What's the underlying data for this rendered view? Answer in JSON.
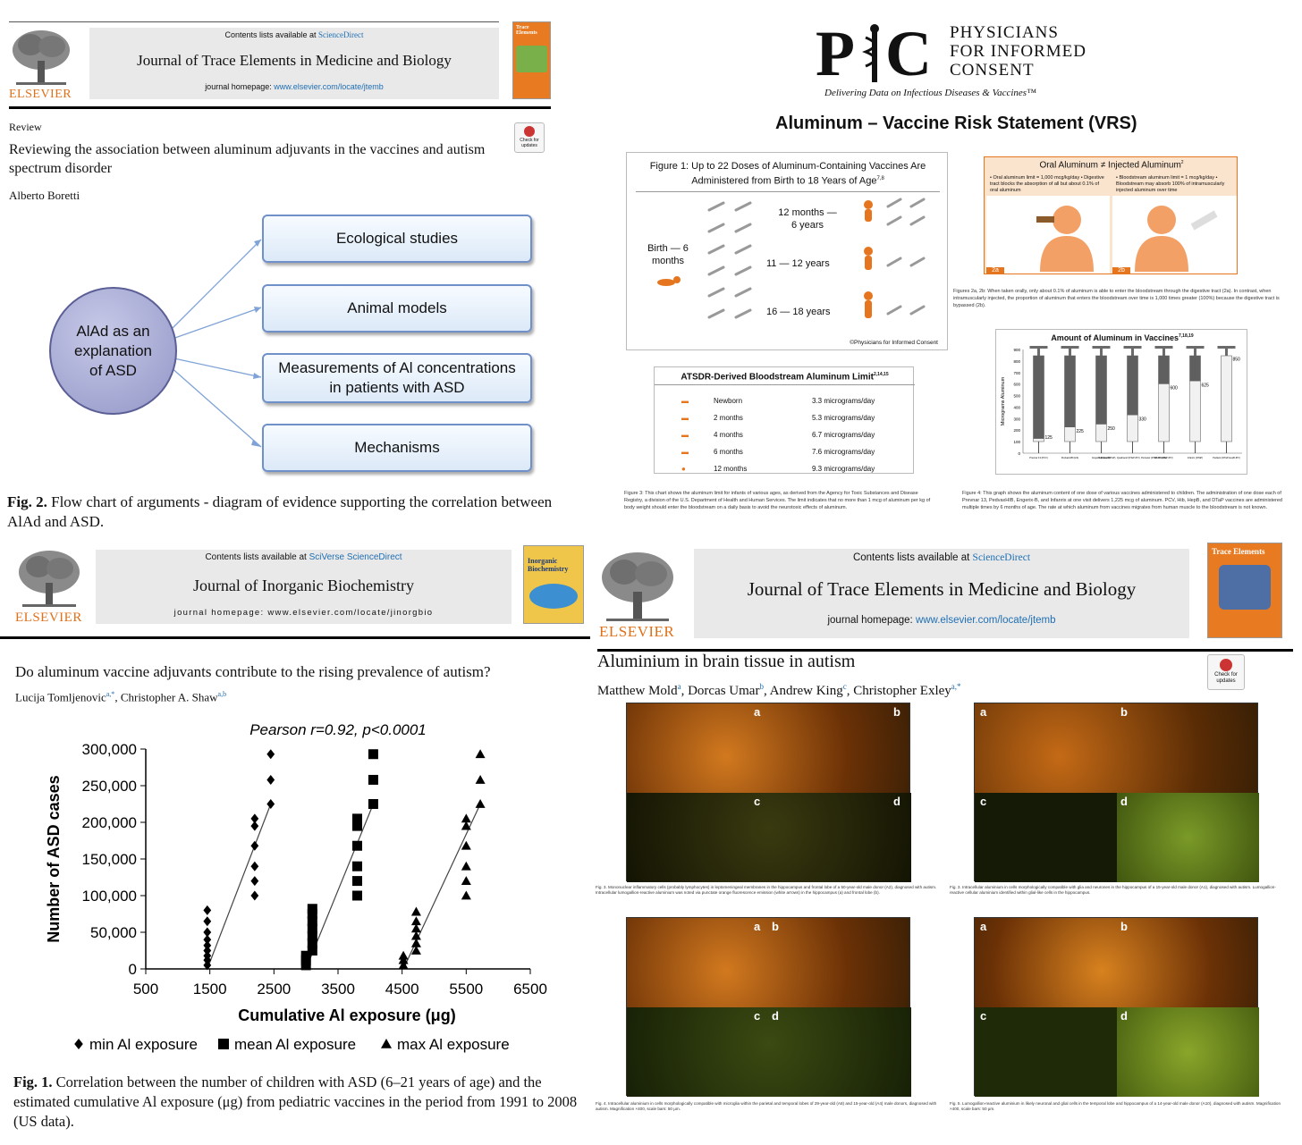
{
  "q1": {
    "contents_prefix": "Contents lists available at ",
    "contents_link": "ScienceDirect",
    "journal": "Journal of Trace Elements in Medicine and Biology",
    "homepage_prefix": "journal homepage: ",
    "homepage_link": "www.elsevier.com/locate/jtemb",
    "publisher": "ELSEVIER",
    "cover_title": "Trace Elements",
    "check_updates": "Check for updates",
    "article_type": "Review",
    "title": "Reviewing the association between aluminum adjuvants in the vaccines and autism spectrum disorder",
    "author": "Alberto Boretti",
    "center": "AlAd as an explanation of ASD",
    "boxes": [
      "Ecological studies",
      "Animal models",
      "Measurements of Al concentrations in patients with ASD",
      "Mechanisms"
    ],
    "fig_label": "Fig. 2.",
    "fig_caption": " Flow chart of arguments - diagram of evidence supporting the correlation between AlAd and ASD."
  },
  "q2": {
    "org_line1": "PHYSICIANS",
    "org_line2": "FOR INFORMED",
    "org_line3": "CONSENT",
    "tagline": "Delivering Data on Infectious Diseases & Vaccines™",
    "title": "Aluminum – Vaccine Risk Statement (VRS)",
    "fig1_title": "Figure 1: Up to 22 Doses of Aluminum-Containing Vaccines Are Administered from Birth to 18 Years of Age",
    "fig1_sup": "7,8",
    "ages": [
      "Birth — 6 months",
      "12 months — 6 years",
      "11 — 12 years",
      "16 — 18 years"
    ],
    "fig1_credit": "©Physicians for Informed Consent",
    "fig2_title": "Oral Aluminum ≠ Injected Aluminum",
    "fig2_sup": "2",
    "fig2a_text": "• Oral aluminum limit = 1,000 mcg/kg/day • Digestive tract blocks the absorption of all but about 0.1% of oral aluminum",
    "fig2b_text": "• Bloodstream aluminum limit = 1 mcg/kg/day • Bloodstream may absorb 100% of intramuscularly injected aluminum over time",
    "fig2a_tag": "2a",
    "fig2b_tag": "2b",
    "fig2_caption": "Figures 2a, 2b: When taken orally, only about 0.1% of aluminum is able to enter the bloodstream through the digestive tract (2a). In contrast, when intramuscularly injected, the proportion of aluminum that enters the bloodstream over time is 1,000 times greater (100%) because the digestive tract is bypassed (2b).",
    "fig3_title": "ATSDR-Derived Bloodstream Aluminum Limit",
    "fig3_sup": "2,14,15",
    "limits": [
      {
        "age": "Newborn",
        "value": "3.3 micrograms/day"
      },
      {
        "age": "2 months",
        "value": "5.3 micrograms/day"
      },
      {
        "age": "4 months",
        "value": "6.7 micrograms/day"
      },
      {
        "age": "6 months",
        "value": "7.6 micrograms/day"
      },
      {
        "age": "12 months",
        "value": "9.3 micrograms/day"
      }
    ],
    "fig3_caption": "Figure 3: This chart shows the aluminum limit for infants of various ages, as derived from the Agency for Toxic Substances and Disease Registry, a division of the U.S. Department of Health and Human Services. The limit indicates that no more than 1 mcg of aluminum per kg of body weight should enter the bloodstream on a daily basis to avoid the neurotoxic effects of aluminum.",
    "fig4_title": "Amount of Aluminum in Vaccines",
    "fig4_sup": "7,18,19",
    "fig4_ylabel": "Micrograms Aluminum",
    "fig4_caption": "Figure 4: This graph shows the aluminum content of one dose of various vaccines administered to children. The administration of one dose each of Prevnar 13, PedvaxHIB, Engerix-B, and Infanrix at one visit delivers 1,225 mcg of aluminum. PCV, Hib, HepB, and DTaP vaccines are administered multiple times by 6 months of age. The rate at which aluminum from vaccines migrates from human muscle to the bloodstream is not known."
  },
  "q3": {
    "contents_prefix": "Contents lists available at ",
    "contents_link": "SciVerse ScienceDirect",
    "journal": "Journal of Inorganic Biochemistry",
    "homepage": "journal homepage: www.elsevier.com/locate/jinorgbio",
    "publisher": "ELSEVIER",
    "cover_title": "Inorganic Biochemistry",
    "title": "Do aluminum vaccine adjuvants contribute to the rising prevalence of autism?",
    "authors": "Lucija Tomljenovic",
    "authors_sup1": "a,*",
    "authors_mid": ", Christopher A. Shaw",
    "authors_sup2": "a,b",
    "fig_label": "Fig. 1.",
    "fig_caption": " Correlation between the number of children with ASD (6–21 years of age) and the estimated cumulative Al exposure (μg) from pediatric vaccines in the period from 1991 to 2008 (US data)."
  },
  "q4": {
    "contents_prefix": "Contents lists available at ",
    "contents_link": "ScienceDirect",
    "journal": "Journal of Trace Elements in Medicine and Biology",
    "homepage_prefix": "journal homepage: ",
    "homepage_link": "www.elsevier.com/locate/jtemb",
    "publisher": "ELSEVIER",
    "cover_title": "Trace Elements",
    "check_updates": "Check for updates",
    "title": "Aluminium in brain tissue in autism",
    "authors": [
      {
        "name": "Matthew Mold",
        "sup": "a"
      },
      {
        "name": ", Dorcas Umar",
        "sup": "b"
      },
      {
        "name": ", Andrew King",
        "sup": "c"
      },
      {
        "name": ", Christopher Exley",
        "sup": "a,*"
      }
    ],
    "panel_letters": [
      "a",
      "b",
      "c",
      "d"
    ],
    "caption_fig3": "Fig. 3. Mononuclear inflammatory cells (probably lymphocytes) in leptomeningeal membranes in the hippocampus and frontal lobe of a 50-year-old male donor (A2), diagnosed with autism. Intracellular lumogallion-reactive aluminium was noted via punctate orange fluorescence emission (white arrows) in the hippocampus (a) and frontal lobe (b).",
    "caption_fig3b": "Fig. 3. Intracellular aluminium in cells morphologically compatible with glia and neurones in the hippocampus of a 15-year-old male donor (A1), diagnosed with autism. Lumogallion-reactive cellular aluminium identified within glial-like cells in the hippocampus.",
    "caption_fig4": "Fig. 4. Intracellular aluminium in cells morphologically compatible with microglia within the parietal and temporal lobes of 29-year-old (A8) and 15-year-old (A4) male donors, diagnosed with autism. Magnification ×400, scale bars: 50 μm.",
    "caption_fig5": "Fig. 5. Lumogallion-reactive aluminium in likely neuronal and glial cells in the temporal lobe and hippocampus of a 14-year-old male donor (A10), diagnosed with autism. Magnification ×400, scale bars: 50 μm."
  },
  "chart_data": [
    {
      "type": "scatter",
      "title": "Pearson r=0.92, p<0.0001",
      "xlabel": "Cumulative Al exposure (μg)",
      "ylabel": "Number of ASD cases",
      "xlim": [
        500,
        6500
      ],
      "ylim": [
        0,
        300000
      ],
      "xticks": [
        "500",
        "1500",
        "2500",
        "3500",
        "4500",
        "5500",
        "6500"
      ],
      "yticks": [
        "0",
        "50,000",
        "100,000",
        "150,000",
        "200,000",
        "250,000",
        "300,000"
      ],
      "legend_position": "bottom",
      "series": [
        {
          "name": "min Al exposure",
          "marker": "diamond",
          "x": [
            1460,
            1460,
            1460,
            1460,
            1460,
            1460,
            1460,
            1460,
            1460,
            2200,
            2200,
            2200,
            2200,
            2200,
            2200,
            2450,
            2450,
            2450
          ],
          "y": [
            5000,
            12000,
            18000,
            25000,
            32000,
            40000,
            50000,
            65000,
            80000,
            100000,
            120000,
            140000,
            168000,
            195000,
            205000,
            225000,
            258000,
            293000
          ],
          "fit": [
            [
              1460,
              0
            ],
            [
              2450,
              225000
            ]
          ]
        },
        {
          "name": "mean Al exposure",
          "marker": "square",
          "x": [
            3000,
            3000,
            3000,
            3100,
            3100,
            3100,
            3100,
            3100,
            3100,
            3100,
            3800,
            3800,
            3800,
            3800,
            3800,
            3800,
            4050,
            4050,
            4050
          ],
          "y": [
            5000,
            12000,
            18000,
            25000,
            35000,
            45000,
            55000,
            65000,
            75000,
            82000,
            100000,
            120000,
            140000,
            168000,
            195000,
            205000,
            225000,
            258000,
            293000
          ],
          "fit": [
            [
              3000,
              0
            ],
            [
              4050,
              225000
            ]
          ]
        },
        {
          "name": "max Al exposure",
          "marker": "triangle",
          "x": [
            4520,
            4520,
            4520,
            4720,
            4720,
            4720,
            4720,
            4720,
            4720,
            5500,
            5500,
            5500,
            5500,
            5500,
            5500,
            5720,
            5720,
            5720
          ],
          "y": [
            5000,
            12000,
            18000,
            25000,
            35000,
            45000,
            55000,
            65000,
            78000,
            100000,
            120000,
            140000,
            168000,
            195000,
            205000,
            225000,
            258000,
            293000
          ],
          "fit": [
            [
              4520,
              0
            ],
            [
              5720,
              225000
            ]
          ]
        }
      ]
    },
    {
      "type": "bar",
      "title": "Amount of Aluminum in Vaccines",
      "ylabel": "Micrograms Aluminum",
      "ylim": [
        0,
        900
      ],
      "yticks": [
        "0",
        "100",
        "200",
        "300",
        "400",
        "500",
        "600",
        "700",
        "800",
        "900"
      ],
      "categories": [
        "Prevnar 13 (PCV)",
        "PedvaxHIB (Hib)",
        "Engerix-B (HepB)",
        "Daptacel (DTaP), Quadracel (DTaP-IPV), Pentacel (DTaP-IPV-Hib)",
        "Kinrix (DTaP-IPV)",
        "Infanrix (DTaP)",
        "Pediarix (DTaP-HepB-IPV)"
      ],
      "values": [
        125,
        225,
        250,
        330,
        600,
        625,
        850
      ],
      "value_labels": [
        "125",
        "225",
        "250",
        "330",
        "600",
        "625",
        "850"
      ]
    }
  ],
  "colors": {
    "elsevier_orange": "#e07018",
    "link_blue": "#1f6fb4",
    "pic_orange": "#e5761f",
    "flow_border": "#6f90c8"
  }
}
